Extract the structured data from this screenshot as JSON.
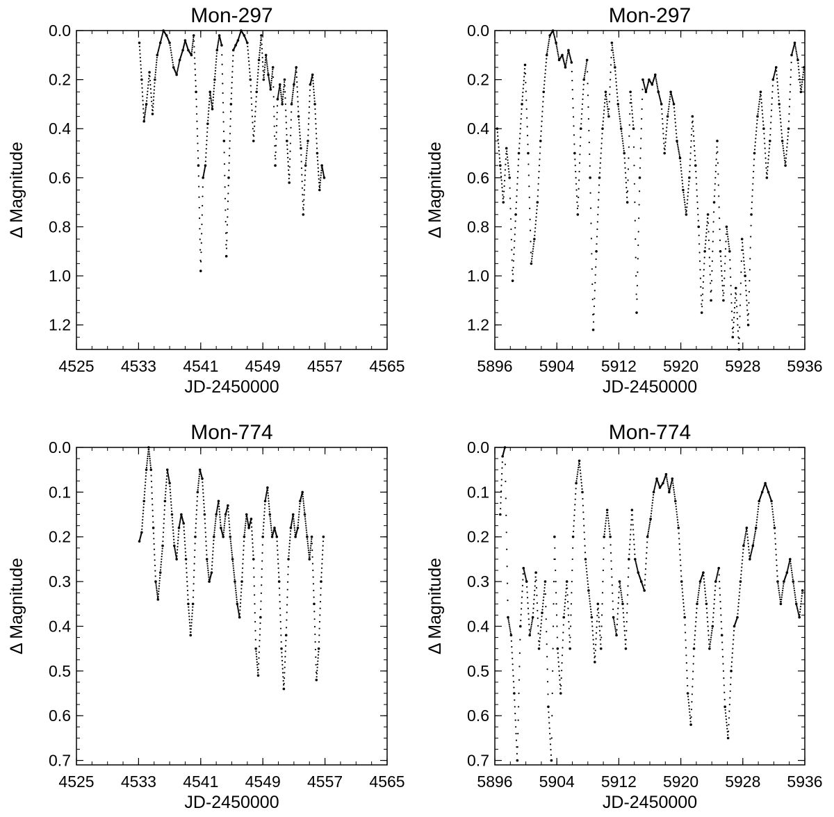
{
  "chart_data": [
    {
      "type": "scatter",
      "title": "Mon-297",
      "xlabel": "JD-2450000",
      "ylabel": "Δ Magnitude",
      "xlim": [
        4525,
        4565
      ],
      "ylim": [
        0.0,
        1.3
      ],
      "y_inverted": true,
      "xticks": [
        "4525",
        "4533",
        "4541",
        "4549",
        "4557",
        "4565"
      ],
      "yticks": [
        "0.0",
        "0.2",
        "0.4",
        "0.6",
        "0.8",
        "1.0",
        "1.2"
      ],
      "series": [
        {
          "x": [
            4533.1,
            4533.4,
            4533.7,
            4534.0,
            4534.4,
            4534.8,
            4535.1,
            4535.4,
            4535.8,
            4536.2,
            4536.6,
            4537.0,
            4537.5,
            4537.9,
            4538.3,
            4538.7,
            4539.0,
            4539.4,
            4539.8,
            4540.1,
            4540.4,
            4540.7,
            4541.0,
            4541.3,
            4541.6,
            4541.9,
            4542.2,
            4542.5,
            4542.8,
            4543.1,
            4543.4,
            4543.7,
            4544.0,
            4544.3,
            4544.6,
            4544.9,
            4545.2,
            4545.5,
            4545.8,
            4546.2,
            4546.6,
            4547.0,
            4547.4,
            4547.8,
            4548.2,
            4548.5,
            4548.8,
            4549.1,
            4549.4,
            4549.7,
            4550.0,
            4550.3,
            4550.6,
            4550.9,
            4551.2,
            4551.5,
            4551.8,
            4552.1,
            4552.4,
            4552.7,
            4553.0,
            4553.3,
            4553.6,
            4553.9,
            4554.2,
            4554.5,
            4554.8,
            4555.1,
            4555.4,
            4555.7,
            4556.0,
            4556.3,
            4556.6,
            4556.9
          ],
          "y": [
            0.05,
            0.2,
            0.37,
            0.3,
            0.17,
            0.34,
            0.2,
            0.1,
            0.05,
            0.0,
            0.02,
            0.05,
            0.15,
            0.18,
            0.12,
            0.08,
            0.04,
            0.08,
            0.1,
            0.02,
            0.25,
            0.55,
            0.98,
            0.6,
            0.55,
            0.38,
            0.25,
            0.32,
            0.2,
            0.08,
            0.02,
            0.06,
            0.45,
            0.92,
            0.6,
            0.3,
            0.08,
            0.06,
            0.04,
            0.0,
            0.02,
            0.05,
            0.2,
            0.45,
            0.25,
            0.12,
            0.02,
            0.2,
            0.1,
            0.18,
            0.24,
            0.15,
            0.55,
            0.28,
            0.22,
            0.3,
            0.2,
            0.45,
            0.62,
            0.3,
            0.22,
            0.15,
            0.35,
            0.48,
            0.75,
            0.55,
            0.45,
            0.22,
            0.18,
            0.3,
            0.5,
            0.65,
            0.55,
            0.6
          ]
        }
      ]
    },
    {
      "type": "scatter",
      "title": "Mon-297",
      "xlabel": "JD-2450000",
      "ylabel": "Δ Magnitude",
      "xlim": [
        5896,
        5936
      ],
      "ylim": [
        0.0,
        1.3
      ],
      "y_inverted": true,
      "xticks": [
        "5896",
        "5904",
        "5912",
        "5920",
        "5928",
        "5936"
      ],
      "yticks": [
        "0.0",
        "0.2",
        "0.4",
        "0.6",
        "0.8",
        "1.0",
        "1.2"
      ],
      "series": [
        {
          "x": [
            5896.3,
            5896.7,
            5897.1,
            5897.5,
            5897.9,
            5898.3,
            5898.7,
            5899.1,
            5899.5,
            5899.9,
            5900.3,
            5900.7,
            5901.1,
            5901.5,
            5901.9,
            5902.3,
            5902.7,
            5903.1,
            5903.5,
            5903.9,
            5904.3,
            5904.7,
            5905.1,
            5905.5,
            5905.9,
            5906.3,
            5906.7,
            5907.1,
            5907.5,
            5907.9,
            5908.3,
            5908.7,
            5909.1,
            5909.5,
            5909.9,
            5910.3,
            5910.7,
            5911.1,
            5911.5,
            5911.9,
            5912.3,
            5912.7,
            5913.1,
            5913.5,
            5913.9,
            5914.3,
            5914.7,
            5915.1,
            5915.5,
            5915.9,
            5916.3,
            5916.7,
            5917.1,
            5917.5,
            5917.9,
            5918.3,
            5918.7,
            5919.1,
            5919.5,
            5919.9,
            5920.3,
            5920.7,
            5921.1,
            5921.5,
            5921.9,
            5922.3,
            5922.7,
            5923.1,
            5923.5,
            5923.9,
            5924.3,
            5924.7,
            5925.1,
            5925.5,
            5925.9,
            5926.3,
            5926.7,
            5927.1,
            5927.5,
            5927.9,
            5928.3,
            5928.7,
            5929.1,
            5929.5,
            5929.9,
            5930.3,
            5930.7,
            5931.1,
            5931.5,
            5931.9,
            5932.3,
            5932.7,
            5933.1,
            5933.5,
            5933.9,
            5934.3,
            5934.7,
            5935.1,
            5935.5,
            5935.9
          ],
          "y": [
            0.4,
            0.55,
            0.7,
            0.48,
            0.6,
            1.02,
            0.75,
            0.5,
            0.3,
            0.14,
            0.5,
            0.95,
            0.85,
            0.7,
            0.45,
            0.25,
            0.1,
            0.02,
            0.0,
            0.05,
            0.12,
            0.1,
            0.15,
            0.08,
            0.13,
            0.5,
            0.75,
            0.4,
            0.2,
            0.12,
            0.6,
            1.22,
            0.9,
            0.6,
            0.4,
            0.25,
            0.35,
            0.05,
            0.15,
            0.3,
            0.4,
            0.5,
            0.7,
            0.25,
            0.4,
            1.15,
            0.6,
            0.2,
            0.25,
            0.2,
            0.22,
            0.18,
            0.25,
            0.3,
            0.5,
            0.35,
            0.25,
            0.3,
            0.45,
            0.52,
            0.65,
            0.75,
            0.6,
            0.35,
            0.55,
            0.8,
            1.15,
            0.9,
            0.75,
            1.1,
            0.7,
            0.45,
            0.9,
            1.1,
            0.8,
            0.9,
            1.25,
            1.05,
            1.3,
            0.85,
            1.0,
            1.2,
            0.75,
            0.5,
            0.35,
            0.25,
            0.4,
            0.6,
            0.45,
            0.2,
            0.15,
            0.3,
            0.45,
            0.55,
            0.4,
            0.1,
            0.05,
            0.12,
            0.25,
            0.15
          ]
        }
      ]
    },
    {
      "type": "scatter",
      "title": "Mon-774",
      "xlabel": "JD-2450000",
      "ylabel": "Δ Magnitude",
      "xlim": [
        4525,
        4565
      ],
      "ylim": [
        0.0,
        0.71
      ],
      "y_inverted": true,
      "xticks": [
        "4525",
        "4533",
        "4541",
        "4549",
        "4557",
        "4565"
      ],
      "yticks": [
        "0.0",
        "0.1",
        "0.2",
        "0.3",
        "0.4",
        "0.5",
        "0.6",
        "0.7"
      ],
      "series": [
        {
          "x": [
            4533.1,
            4533.4,
            4533.7,
            4534.0,
            4534.3,
            4534.6,
            4534.9,
            4535.2,
            4535.5,
            4535.8,
            4536.1,
            4536.4,
            4536.7,
            4537.0,
            4537.3,
            4537.6,
            4537.9,
            4538.2,
            4538.5,
            4538.8,
            4539.1,
            4539.4,
            4539.7,
            4540.0,
            4540.3,
            4540.6,
            4540.9,
            4541.2,
            4541.5,
            4541.8,
            4542.1,
            4542.4,
            4542.7,
            4543.0,
            4543.3,
            4543.6,
            4543.9,
            4544.2,
            4544.5,
            4544.8,
            4545.1,
            4545.4,
            4545.7,
            4546.0,
            4546.3,
            4546.6,
            4546.9,
            4547.2,
            4547.5,
            4547.8,
            4548.1,
            4548.4,
            4548.7,
            4549.0,
            4549.3,
            4549.6,
            4549.9,
            4550.2,
            4550.5,
            4550.8,
            4551.1,
            4551.4,
            4551.7,
            4552.0,
            4552.3,
            4552.6,
            4552.9,
            4553.2,
            4553.5,
            4553.8,
            4554.1,
            4554.4,
            4554.7,
            4555.0,
            4555.3,
            4555.6,
            4555.9,
            4556.2,
            4556.5,
            4556.8
          ],
          "y": [
            0.21,
            0.19,
            0.12,
            0.05,
            0.0,
            0.05,
            0.18,
            0.3,
            0.34,
            0.28,
            0.22,
            0.12,
            0.05,
            0.08,
            0.15,
            0.22,
            0.25,
            0.18,
            0.15,
            0.17,
            0.25,
            0.35,
            0.42,
            0.35,
            0.2,
            0.1,
            0.05,
            0.07,
            0.15,
            0.25,
            0.3,
            0.28,
            0.2,
            0.15,
            0.12,
            0.18,
            0.2,
            0.15,
            0.13,
            0.2,
            0.25,
            0.3,
            0.35,
            0.38,
            0.3,
            0.2,
            0.15,
            0.18,
            0.16,
            0.25,
            0.45,
            0.51,
            0.38,
            0.2,
            0.12,
            0.09,
            0.15,
            0.2,
            0.18,
            0.2,
            0.3,
            0.45,
            0.54,
            0.42,
            0.25,
            0.18,
            0.15,
            0.2,
            0.18,
            0.12,
            0.1,
            0.15,
            0.2,
            0.25,
            0.2,
            0.35,
            0.52,
            0.45,
            0.3,
            0.2
          ]
        }
      ]
    },
    {
      "type": "scatter",
      "title": "Mon-774",
      "xlabel": "JD-2450000",
      "ylabel": "Δ Magnitude",
      "xlim": [
        5896,
        5936
      ],
      "ylim": [
        0.0,
        0.71
      ],
      "y_inverted": true,
      "xticks": [
        "5896",
        "5904",
        "5912",
        "5920",
        "5928",
        "5936"
      ],
      "yticks": [
        "0.0",
        "0.1",
        "0.2",
        "0.3",
        "0.4",
        "0.5",
        "0.6",
        "0.7"
      ],
      "series": [
        {
          "x": [
            5896.7,
            5897.0,
            5897.3,
            5897.7,
            5898.1,
            5898.5,
            5898.9,
            5899.3,
            5899.7,
            5900.1,
            5900.5,
            5900.9,
            5901.3,
            5901.7,
            5902.1,
            5902.5,
            5902.9,
            5903.3,
            5903.7,
            5904.1,
            5904.5,
            5904.9,
            5905.3,
            5905.7,
            5906.1,
            5906.5,
            5906.9,
            5907.3,
            5907.7,
            5908.1,
            5908.5,
            5908.9,
            5909.3,
            5909.7,
            5910.1,
            5910.5,
            5910.9,
            5911.3,
            5911.7,
            5912.1,
            5912.5,
            5912.9,
            5913.3,
            5913.7,
            5914.1,
            5914.5,
            5914.9,
            5915.3,
            5915.7,
            5916.1,
            5916.5,
            5916.9,
            5917.3,
            5917.7,
            5918.1,
            5918.5,
            5918.9,
            5919.3,
            5919.7,
            5920.1,
            5920.5,
            5920.9,
            5921.3,
            5921.7,
            5922.1,
            5922.5,
            5922.9,
            5923.3,
            5923.7,
            5924.1,
            5924.5,
            5924.9,
            5925.3,
            5925.7,
            5926.1,
            5926.5,
            5926.9,
            5927.3,
            5927.7,
            5928.1,
            5928.5,
            5928.9,
            5929.3,
            5929.7,
            5930.1,
            5930.5,
            5930.9,
            5931.3,
            5931.7,
            5932.1,
            5932.5,
            5932.9,
            5933.3,
            5933.7,
            5934.1,
            5934.5,
            5934.9,
            5935.3,
            5935.7
          ],
          "y": [
            0.15,
            0.02,
            0.0,
            0.38,
            0.42,
            0.55,
            0.7,
            0.4,
            0.27,
            0.3,
            0.42,
            0.38,
            0.28,
            0.45,
            0.37,
            0.3,
            0.58,
            0.7,
            0.2,
            0.45,
            0.55,
            0.38,
            0.3,
            0.45,
            0.2,
            0.08,
            0.03,
            0.1,
            0.25,
            0.32,
            0.38,
            0.48,
            0.35,
            0.45,
            0.2,
            0.14,
            0.2,
            0.38,
            0.42,
            0.3,
            0.35,
            0.45,
            0.25,
            0.14,
            0.25,
            0.28,
            0.3,
            0.32,
            0.2,
            0.16,
            0.1,
            0.07,
            0.09,
            0.08,
            0.06,
            0.1,
            0.07,
            0.12,
            0.18,
            0.3,
            0.38,
            0.55,
            0.62,
            0.45,
            0.35,
            0.3,
            0.28,
            0.35,
            0.45,
            0.4,
            0.3,
            0.27,
            0.42,
            0.58,
            0.65,
            0.5,
            0.4,
            0.38,
            0.3,
            0.22,
            0.18,
            0.25,
            0.22,
            0.18,
            0.12,
            0.1,
            0.08,
            0.1,
            0.12,
            0.18,
            0.3,
            0.35,
            0.3,
            0.28,
            0.25,
            0.3,
            0.35,
            0.38,
            0.32
          ]
        }
      ]
    }
  ]
}
